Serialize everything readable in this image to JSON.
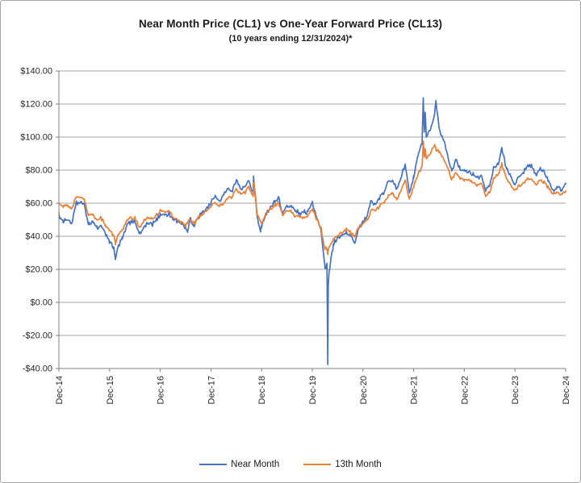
{
  "window": {
    "background": "#ffffff",
    "border_color": "#a6a6a6"
  },
  "chart_data": {
    "type": "line",
    "title": "Near Month Price (CL1) vs One-Year Forward Price (CL13)",
    "subtitle": "(10 years ending 12/31/2024)*",
    "grid": true,
    "colors": {
      "gridline": "#a6a6a6",
      "axis_line": "#808080",
      "text": "#262626"
    },
    "x_axis": {
      "tick_labels": [
        "Dec-14",
        "Dec-15",
        "Dec-16",
        "Dec-17",
        "Dec-18",
        "Dec-19",
        "Dec-20",
        "Dec-21",
        "Dec-22",
        "Dec-23",
        "Dec-24"
      ],
      "start": "Dec-2014",
      "end": "Dec-2024",
      "note": "t = years since Dec-2014, range 0..10"
    },
    "y_axis": {
      "tick_labels": [
        "$140.00",
        "$120.00",
        "$100.00",
        "$80.00",
        "$60.00",
        "$40.00",
        "$20.00",
        "$0.00",
        "-$20.00",
        "-$40.00"
      ],
      "tick_values": [
        140,
        120,
        100,
        80,
        60,
        40,
        20,
        0,
        -20,
        -40
      ],
      "min": -40,
      "max": 140
    },
    "legend": {
      "position": "bottom",
      "entries": [
        "Near Month",
        "13th Month"
      ]
    },
    "sampling_note": "monthly_values index 0 = Dec-2014 then one value per month through Dec-2024 (121 values); extra_points are intramonth spikes at fractional year t with price v",
    "series": [
      {
        "name": "Near Month",
        "color": "#4472C4",
        "monthly_values": [
          53.3,
          48.2,
          49.8,
          47.6,
          59.6,
          60.3,
          59.5,
          47.1,
          49.2,
          45.1,
          46.6,
          41.7,
          37.0,
          33.6,
          33.7,
          38.3,
          45.9,
          49.1,
          48.3,
          41.6,
          44.7,
          48.2,
          46.9,
          49.4,
          53.7,
          52.8,
          54.0,
          50.6,
          49.3,
          48.3,
          44.5,
          50.2,
          47.2,
          51.7,
          54.4,
          57.4,
          60.4,
          64.7,
          61.6,
          64.9,
          68.6,
          67.0,
          74.2,
          68.8,
          69.8,
          73.3,
          65.3,
          50.9,
          45.4,
          53.8,
          57.2,
          60.1,
          63.9,
          53.5,
          58.5,
          58.6,
          55.1,
          54.1,
          54.2,
          55.2,
          61.1,
          51.6,
          44.8,
          20.5,
          18.8,
          35.5,
          39.3,
          40.3,
          42.6,
          40.2,
          35.8,
          45.3,
          48.5,
          52.2,
          61.5,
          59.2,
          63.6,
          66.3,
          73.5,
          73.9,
          68.5,
          75.0,
          83.6,
          66.2,
          75.2,
          88.2,
          95.7,
          100.3,
          104.7,
          114.7,
          105.8,
          98.6,
          89.6,
          79.5,
          86.5,
          80.6,
          80.3,
          78.9,
          77.0,
          75.7,
          76.8,
          68.1,
          70.6,
          81.8,
          83.6,
          90.8,
          81.0,
          76.0,
          71.7,
          75.9,
          78.3,
          83.2,
          81.9,
          77.0,
          81.5,
          77.9,
          73.6,
          68.2,
          69.3,
          68.0,
          71.7
        ],
        "extra_points": [
          {
            "t": 1.115,
            "v": 26.2
          },
          {
            "t": 2.54,
            "v": 42.8
          },
          {
            "t": 3.84,
            "v": 76.4
          },
          {
            "t": 3.98,
            "v": 42.6
          },
          {
            "t": 5.29,
            "v": 22.0
          },
          {
            "t": 5.305,
            "v": -37.6
          },
          {
            "t": 5.315,
            "v": 10.0
          },
          {
            "t": 7.19,
            "v": 123.7
          },
          {
            "t": 7.21,
            "v": 103.0
          },
          {
            "t": 7.23,
            "v": 115.0
          },
          {
            "t": 7.44,
            "v": 122.1
          },
          {
            "t": 8.74,
            "v": 93.7
          }
        ]
      },
      {
        "name": "13th Month",
        "color": "#ED7D31",
        "monthly_values": [
          60.0,
          57.5,
          59.0,
          56.5,
          63.5,
          63.5,
          62.5,
          52.5,
          53.5,
          50.0,
          51.0,
          47.0,
          43.5,
          40.5,
          41.0,
          44.0,
          49.5,
          51.5,
          51.0,
          45.5,
          48.5,
          51.5,
          50.5,
          52.5,
          55.5,
          55.0,
          55.5,
          51.5,
          50.0,
          48.9,
          46.0,
          50.0,
          47.5,
          51.0,
          53.5,
          55.8,
          58.0,
          60.5,
          58.0,
          60.0,
          63.0,
          63.5,
          68.5,
          65.5,
          66.5,
          69.5,
          64.0,
          52.5,
          47.5,
          54.0,
          56.5,
          58.5,
          60.5,
          52.5,
          55.5,
          55.0,
          52.0,
          51.5,
          51.5,
          52.5,
          56.5,
          50.5,
          45.5,
          32.5,
          33.5,
          38.5,
          40.5,
          41.9,
          44.5,
          42.5,
          39.5,
          45.5,
          47.5,
          50.0,
          56.0,
          55.5,
          58.5,
          60.5,
          65.0,
          65.5,
          62.0,
          67.5,
          74.0,
          62.5,
          69.5,
          77.5,
          82.5,
          87.0,
          90.0,
          95.5,
          91.5,
          87.5,
          81.5,
          74.5,
          78.5,
          74.5,
          74.5,
          74.0,
          72.5,
          71.0,
          72.0,
          64.5,
          66.5,
          75.5,
          77.0,
          81.5,
          75.0,
          71.0,
          68.0,
          70.5,
          72.0,
          75.0,
          74.5,
          71.5,
          74.0,
          72.5,
          69.0,
          65.5,
          66.5,
          65.5,
          67.5
        ],
        "extra_points": [
          {
            "t": 1.115,
            "v": 36.0
          },
          {
            "t": 3.84,
            "v": 72.5
          },
          {
            "t": 5.29,
            "v": 32.0
          },
          {
            "t": 5.305,
            "v": 29.0
          },
          {
            "t": 5.315,
            "v": 31.5
          },
          {
            "t": 7.19,
            "v": 97.5
          },
          {
            "t": 7.21,
            "v": 88.0
          },
          {
            "t": 7.23,
            "v": 93.0
          },
          {
            "t": 7.44,
            "v": 93.0
          },
          {
            "t": 8.74,
            "v": 84.5
          }
        ]
      }
    ]
  }
}
